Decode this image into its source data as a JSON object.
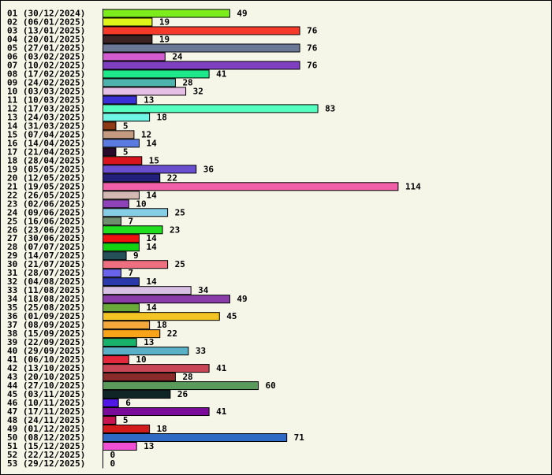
{
  "chart_data": {
    "type": "bar",
    "orientation": "horizontal",
    "title": "",
    "xlabel": "",
    "ylabel": "",
    "xlim": [
      0,
      114
    ],
    "grid": false,
    "legend": "none",
    "categories": [
      "01 (30/12/2024)",
      "02 (06/01/2025)",
      "03 (13/01/2025)",
      "04 (20/01/2025)",
      "05 (27/01/2025)",
      "06 (03/02/2025)",
      "07 (10/02/2025)",
      "08 (17/02/2025)",
      "09 (24/02/2025)",
      "10 (03/03/2025)",
      "11 (10/03/2025)",
      "12 (17/03/2025)",
      "13 (24/03/2025)",
      "14 (31/03/2025)",
      "15 (07/04/2025)",
      "16 (14/04/2025)",
      "17 (21/04/2025)",
      "18 (28/04/2025)",
      "19 (05/05/2025)",
      "20 (12/05/2025)",
      "21 (19/05/2025)",
      "22 (26/05/2025)",
      "23 (02/06/2025)",
      "24 (09/06/2025)",
      "25 (16/06/2025)",
      "26 (23/06/2025)",
      "27 (30/06/2025)",
      "28 (07/07/2025)",
      "29 (14/07/2025)",
      "30 (21/07/2025)",
      "31 (28/07/2025)",
      "32 (04/08/2025)",
      "33 (11/08/2025)",
      "34 (18/08/2025)",
      "35 (25/08/2025)",
      "36 (01/09/2025)",
      "37 (08/09/2025)",
      "38 (15/09/2025)",
      "39 (22/09/2025)",
      "40 (29/09/2025)",
      "41 (06/10/2025)",
      "42 (13/10/2025)",
      "43 (20/10/2025)",
      "44 (27/10/2025)",
      "45 (03/11/2025)",
      "46 (10/11/2025)",
      "47 (17/11/2025)",
      "48 (24/11/2025)",
      "49 (01/12/2025)",
      "50 (08/12/2025)",
      "51 (15/12/2025)",
      "52 (22/12/2025)",
      "53 (29/12/2025)"
    ],
    "values": [
      49,
      19,
      76,
      19,
      76,
      24,
      76,
      41,
      28,
      32,
      13,
      83,
      18,
      5,
      12,
      14,
      5,
      15,
      36,
      22,
      114,
      14,
      10,
      25,
      7,
      23,
      14,
      14,
      9,
      25,
      7,
      14,
      34,
      49,
      14,
      45,
      18,
      22,
      13,
      33,
      10,
      41,
      28,
      60,
      26,
      6,
      41,
      5,
      18,
      71,
      13,
      0,
      0
    ],
    "colors": [
      "#7cec1c",
      "#dff51a",
      "#f53a2a",
      "#3d2424",
      "#6a7896",
      "#d25bd0",
      "#7f3fc1",
      "#1de98b",
      "#4fb3ad",
      "#e6bfe6",
      "#3a30d6",
      "#54ffc0",
      "#6ff5e4",
      "#8e3a14",
      "#c49a80",
      "#5b7be0",
      "#2a0a2a",
      "#d8141e",
      "#6a4ed0",
      "#22207a",
      "#f25fa9",
      "#d4b8b4",
      "#8e44b8",
      "#86cde6",
      "#6e8e6e",
      "#1fdf1f",
      "#ee1111",
      "#12d212",
      "#25505a",
      "#ee7080",
      "#6a64ec",
      "#2a3aaa",
      "#d8c0e4",
      "#8a3ca8",
      "#6aaa3a",
      "#f2c424",
      "#f6a83a",
      "#f8a41a",
      "#18b26a",
      "#5ab0c4",
      "#e2283a",
      "#c84656",
      "#8a2a2a",
      "#5a9a5a",
      "#102626",
      "#5018e6",
      "#7a0a9a",
      "#c81450",
      "#d21c1c",
      "#2f6ac4",
      "#f250d4",
      "#cccccc",
      "#cccccc"
    ]
  }
}
